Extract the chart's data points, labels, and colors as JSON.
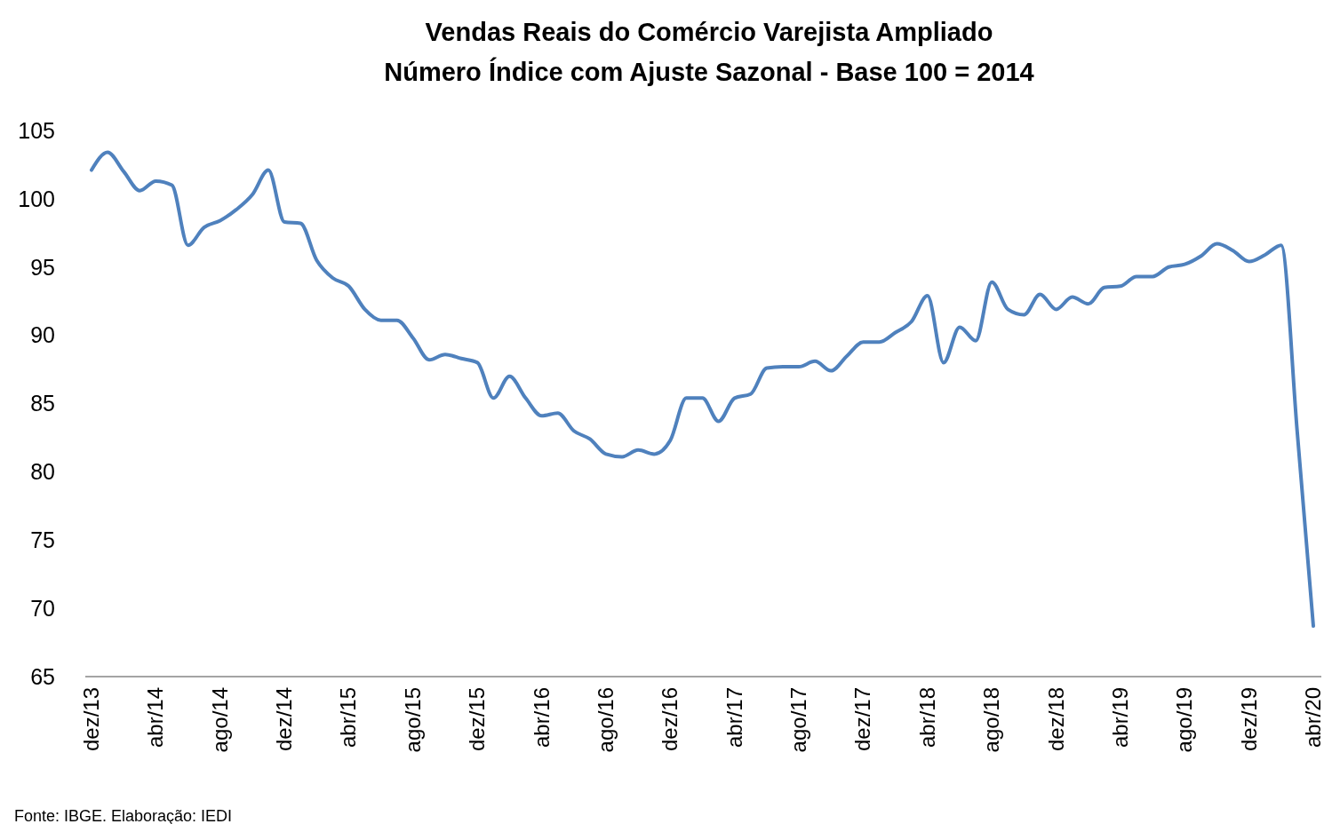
{
  "chart_data": {
    "type": "line",
    "title": "Vendas Reais do Comércio Varejista Ampliado",
    "subtitle": "Número Índice com Ajuste Sazonal - Base 100 = 2014",
    "categories": [
      "dez/13",
      null,
      null,
      null,
      "abr/14",
      null,
      null,
      null,
      "ago/14",
      null,
      null,
      null,
      "dez/14",
      null,
      null,
      null,
      "abr/15",
      null,
      null,
      null,
      "ago/15",
      null,
      null,
      null,
      "dez/15",
      null,
      null,
      null,
      "abr/16",
      null,
      null,
      null,
      "ago/16",
      null,
      null,
      null,
      "dez/16",
      null,
      null,
      null,
      "abr/17",
      null,
      null,
      null,
      "ago/17",
      null,
      null,
      null,
      "dez/17",
      null,
      null,
      null,
      "abr/18",
      null,
      null,
      null,
      "ago/18",
      null,
      null,
      null,
      "dez/18",
      null,
      null,
      null,
      "abr/19",
      null,
      null,
      null,
      "ago/19",
      null,
      null,
      null,
      "dez/19",
      null,
      null,
      null,
      "abr/20"
    ],
    "series": [
      {
        "color": "#4f81bd",
        "values": [
          102.1,
          103.4,
          102.0,
          100.6,
          101.3,
          101.0,
          96.6,
          97.9,
          98.4,
          99.2,
          100.3,
          102.1,
          98.3,
          98.2,
          95.5,
          94.2,
          93.6,
          91.9,
          91.1,
          91.1,
          89.8,
          88.2,
          88.6,
          88.3,
          88.0,
          85.4,
          87.0,
          85.4,
          84.1,
          84.3,
          83.0,
          82.4,
          81.3,
          81.1,
          81.6,
          81.3,
          82.3,
          85.4,
          85.4,
          83.7,
          85.4,
          85.7,
          87.6,
          87.7,
          87.7,
          88.1,
          87.4,
          88.5,
          89.5,
          89.5,
          90.2,
          91.0,
          92.9,
          88.0,
          90.6,
          89.6,
          93.9,
          91.9,
          91.5,
          93.0,
          91.9,
          92.8,
          92.3,
          93.5,
          93.6,
          94.3,
          94.3,
          95.0,
          95.2,
          95.8,
          96.7,
          96.2,
          95.4,
          95.9,
          96.6,
          82.9,
          68.7
        ]
      }
    ],
    "ylim": [
      65,
      105
    ],
    "yticks": [
      65,
      70,
      75,
      80,
      85,
      90,
      95,
      100,
      105
    ],
    "annotations": [
      "Fonte: IBGE. Elaboração: IEDI"
    ]
  }
}
